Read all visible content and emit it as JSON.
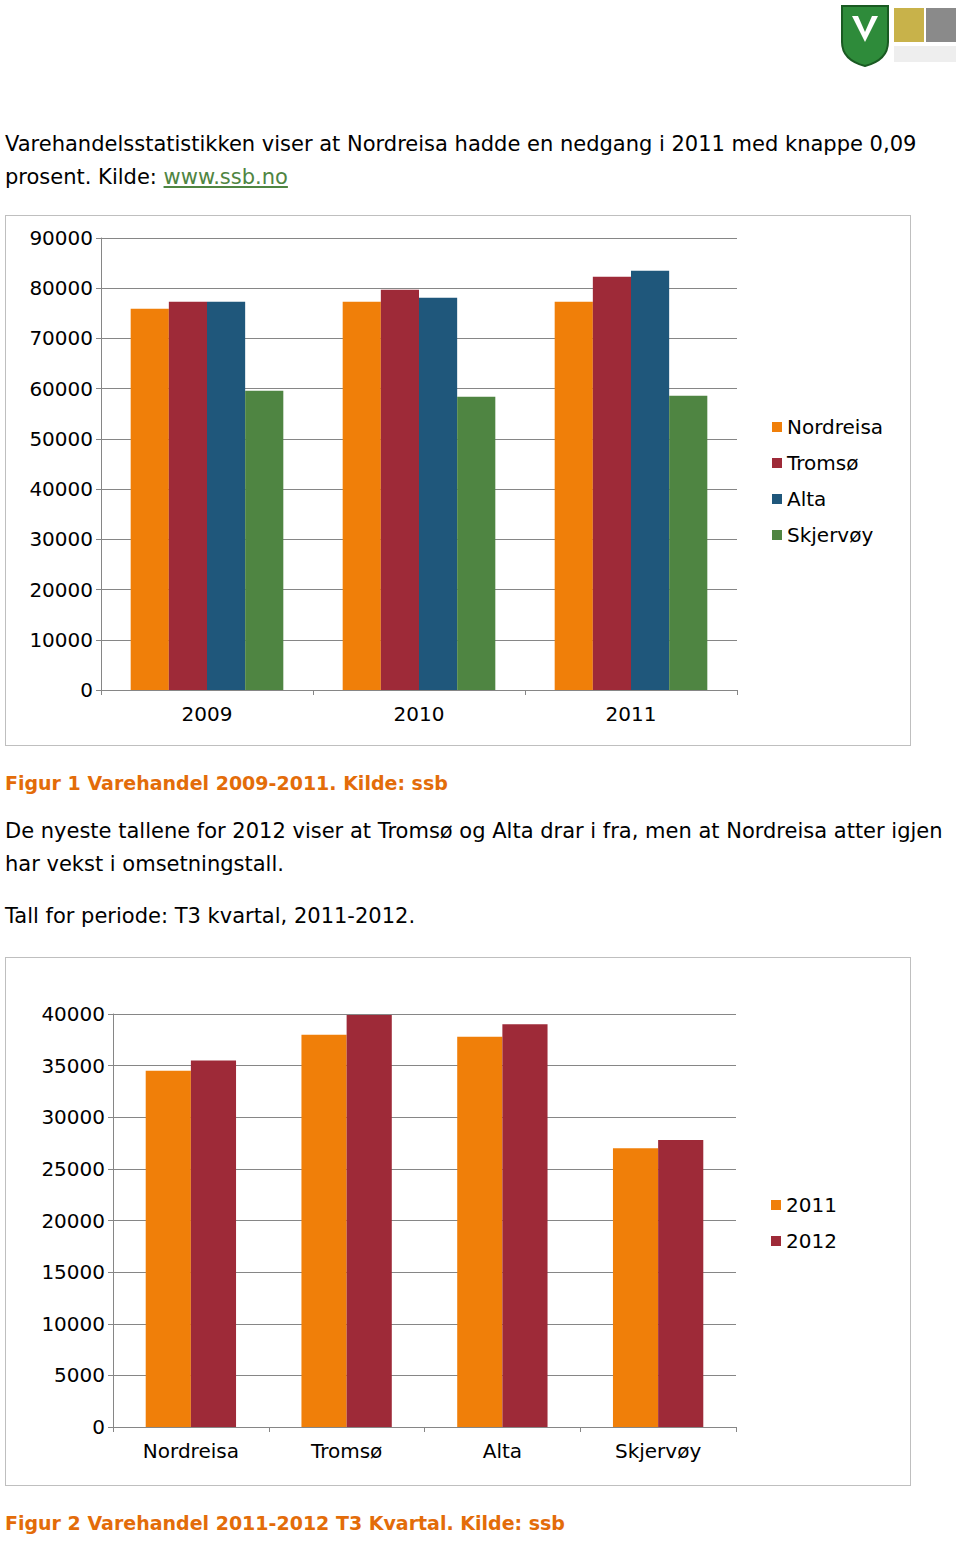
{
  "intro": {
    "text": "Varehandelsstatistikken viser at Nordreisa hadde en nedgang i 2011 med knappe 0,09 prosent. Kilde: ",
    "link": "www.ssb.no"
  },
  "paragraphs": [
    "De nyeste tallene for 2012 viser at Tromsø og Alta drar i fra, men at Nordreisa atter igjen har vekst i omsetningstall.",
    "Tall for periode: T3 kvartal, 2011-2012."
  ],
  "captions": [
    "Figur 1 Varehandel 2009-2011. Kilde: ssb",
    "Figur 2 Varehandel 2011-2012 T3 Kvartal. Kilde: ssb"
  ],
  "chart_data": [
    {
      "type": "bar",
      "categories": [
        "2009",
        "2010",
        "2011"
      ],
      "series": [
        {
          "name": "Nordreisa",
          "color": "#f07f09",
          "values": [
            75900,
            77300,
            77300
          ]
        },
        {
          "name": "Tromsø",
          "color": "#9e2a38",
          "values": [
            77300,
            79700,
            82300
          ]
        },
        {
          "name": "Alta",
          "color": "#1f577b",
          "values": [
            77300,
            78100,
            83500
          ]
        },
        {
          "name": "Skjervøy",
          "color": "#4f8542",
          "values": [
            59600,
            58400,
            58600
          ]
        }
      ],
      "ylim": [
        0,
        90000
      ],
      "yticks": [
        0,
        10000,
        20000,
        30000,
        40000,
        50000,
        60000,
        70000,
        80000,
        90000
      ],
      "grid": true,
      "legend": "right"
    },
    {
      "type": "bar",
      "categories": [
        "Nordreisa",
        "Tromsø",
        "Alta",
        "Skjervøy"
      ],
      "series": [
        {
          "name": "2011",
          "color": "#f07f09",
          "values": [
            34500,
            38000,
            37800,
            27000
          ]
        },
        {
          "name": "2012",
          "color": "#9e2a38",
          "values": [
            35500,
            39900,
            39000,
            27800
          ]
        }
      ],
      "ylim": [
        0,
        40000
      ],
      "yticks": [
        0,
        5000,
        10000,
        15000,
        20000,
        25000,
        30000,
        35000,
        40000
      ],
      "grid": true,
      "legend": "right"
    }
  ]
}
